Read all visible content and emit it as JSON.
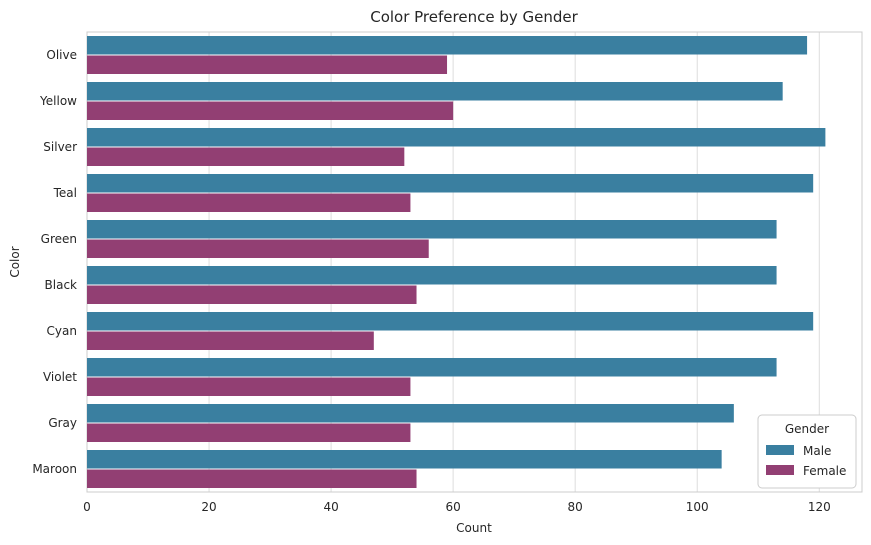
{
  "chart_data": {
    "type": "bar",
    "orientation": "horizontal",
    "title": "Color Preference by Gender",
    "xlabel": "Count",
    "ylabel": "Color",
    "xlim": [
      0,
      127
    ],
    "xticks": [
      0,
      20,
      40,
      60,
      80,
      100,
      120
    ],
    "grid": true,
    "categories": [
      "Olive",
      "Yellow",
      "Silver",
      "Teal",
      "Green",
      "Black",
      "Cyan",
      "Violet",
      "Gray",
      "Maroon"
    ],
    "series": [
      {
        "name": "Male",
        "color": "#3a7fa0",
        "values": [
          118,
          114,
          121,
          119,
          113,
          113,
          119,
          113,
          106,
          104
        ]
      },
      {
        "name": "Female",
        "color": "#923f73",
        "values": [
          59,
          60,
          52,
          53,
          56,
          54,
          47,
          53,
          53,
          54
        ]
      }
    ],
    "legend": {
      "title": "Gender",
      "placement": "lower-right"
    }
  }
}
